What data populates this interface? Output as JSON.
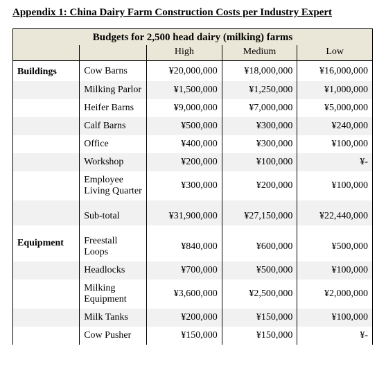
{
  "title": "Appendix 1: China Dairy Farm Construction Costs per Industry Expert",
  "table": {
    "caption": "Budgets for 2,500 head dairy (milking) farms",
    "columns": [
      "High",
      "Medium",
      "Low"
    ],
    "sections": [
      {
        "category": "Buildings",
        "rows": [
          {
            "item": "Cow Barns",
            "high": "¥20,000,000",
            "medium": "¥18,000,000",
            "low": "¥16,000,000"
          },
          {
            "item": "Milking Parlor",
            "high": "¥1,500,000",
            "medium": "¥1,250,000",
            "low": "¥1,000,000"
          },
          {
            "item": "Heifer Barns",
            "high": "¥9,000,000",
            "medium": "¥7,000,000",
            "low": "¥5,000,000"
          },
          {
            "item": "Calf Barns",
            "high": "¥500,000",
            "medium": "¥300,000",
            "low": "¥240,000"
          },
          {
            "item": "Office",
            "high": "¥400,000",
            "medium": "¥300,000",
            "low": "¥100,000"
          },
          {
            "item": "Workshop",
            "high": "¥200,000",
            "medium": "¥100,000",
            "low": "¥-"
          },
          {
            "item": "Employee Living Quarter",
            "high": "¥300,000",
            "medium": "¥200,000",
            "low": "¥100,000"
          }
        ],
        "subtotal": {
          "item": "Sub-total",
          "high": "¥31,900,000",
          "medium": "¥27,150,000",
          "low": "¥22,440,000"
        }
      },
      {
        "category": "Equipment",
        "rows": [
          {
            "item": "Freestall Loops",
            "high": "¥840,000",
            "medium": "¥600,000",
            "low": "¥500,000"
          },
          {
            "item": "Headlocks",
            "high": "¥700,000",
            "medium": "¥500,000",
            "low": "¥100,000"
          },
          {
            "item": "Milking Equipment",
            "high": "¥3,600,000",
            "medium": "¥2,500,000",
            "low": "¥2,000,000"
          },
          {
            "item": "Milk Tanks",
            "high": "¥200,000",
            "medium": "¥150,000",
            "low": "¥100,000"
          },
          {
            "item": "Cow Pusher",
            "high": "¥150,000",
            "medium": "¥150,000",
            "low": "¥-"
          }
        ]
      }
    ]
  }
}
